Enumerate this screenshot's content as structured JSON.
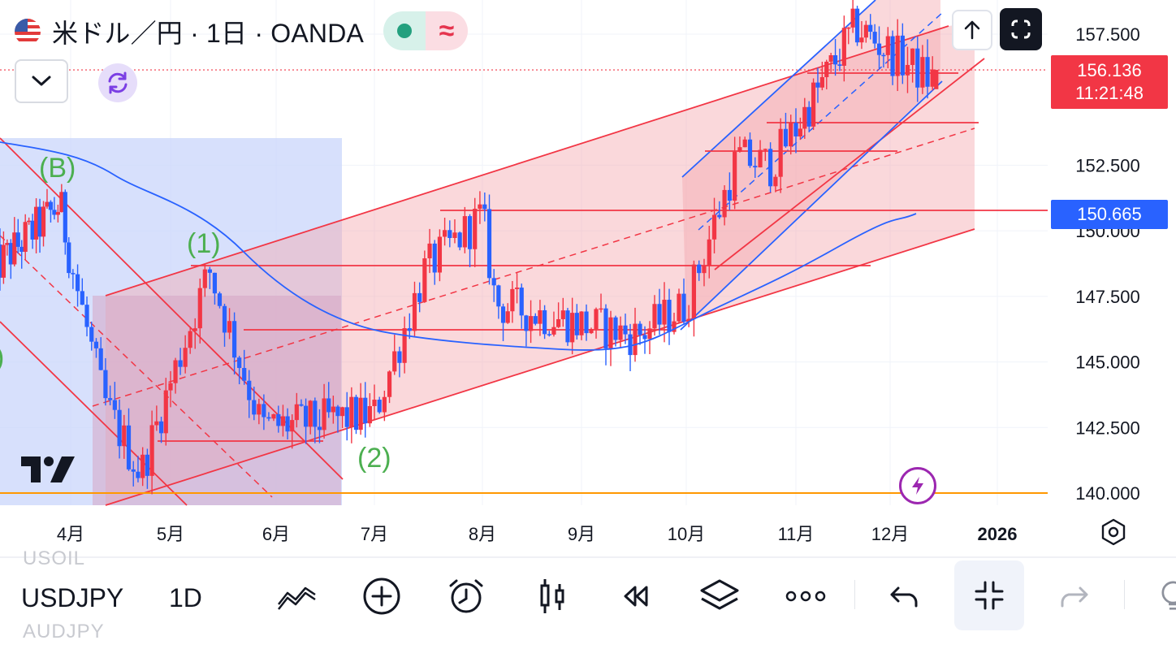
{
  "header": {
    "title": "米ドル／円 · 1日 · OANDA",
    "pill_right_glyph": "≈",
    "status_color": "#23a07e"
  },
  "buttons": {
    "dropdown_icon": "chevron-down-icon",
    "sync_icon": "sync-icon",
    "up_icon": "arrow-up-icon",
    "fullscreen_icon": "fullscreen-icon"
  },
  "price_tag": {
    "price": "156.136",
    "countdown": "11:21:48",
    "color": "#f23645"
  },
  "line_tag": {
    "price": "150.665",
    "color": "#2962ff"
  },
  "bottom": {
    "symbol": "USDJPY",
    "interval": "1D",
    "ghost_above": "USOIL",
    "ghost_below": "AUDJPY",
    "tools": [
      "trend-tools-icon",
      "add-icon",
      "alarm-icon",
      "candles-icon",
      "replay-icon",
      "layers-icon",
      "more-icon",
      "undo-icon",
      "collapse-icon",
      "redo-icon",
      "idea-icon"
    ]
  },
  "chart_data": {
    "type": "candlestick",
    "symbol": "USDJPY",
    "timeframe": "1D",
    "y_axis": {
      "ticks": [
        "157.500",
        "152.500",
        "150.000",
        "147.500",
        "145.000",
        "142.500",
        "140.000"
      ],
      "range": [
        138.5,
        158.8
      ]
    },
    "x_axis": {
      "ticks": [
        "4月",
        "5月",
        "6月",
        "7月",
        "8月",
        "9月",
        "10月",
        "11月",
        "12月",
        "2026"
      ]
    },
    "last_price": 156.136,
    "horizontal_line_price": 150.665,
    "orange_line_price": 140.0,
    "annotations": [
      "(B)",
      "(1)",
      "(2)",
      ")"
    ],
    "candles_monthly_anchor": [
      {
        "date": "2025-03",
        "price": 148.5
      },
      {
        "date": "2025-03-27",
        "price": 151.0
      },
      {
        "date": "2025-04-11",
        "price": 143.5
      },
      {
        "date": "2025-04-22",
        "price": 140.7
      },
      {
        "date": "2025-05-12",
        "price": 148.5
      },
      {
        "date": "2025-05-27",
        "price": 142.5
      },
      {
        "date": "2025-07-01",
        "price": 143.0
      },
      {
        "date": "2025-07-15",
        "price": 148.5
      },
      {
        "date": "2025-08-01",
        "price": 150.6
      },
      {
        "date": "2025-08-05",
        "price": 147.2
      },
      {
        "date": "2025-09-17",
        "price": 146.0
      },
      {
        "date": "2025-10-01",
        "price": 147.2
      },
      {
        "date": "2025-10-15",
        "price": 152.8
      },
      {
        "date": "2025-10-24",
        "price": 152.5
      },
      {
        "date": "2025-11-20",
        "price": 157.8
      },
      {
        "date": "2025-12-12",
        "price": 155.8
      }
    ]
  }
}
